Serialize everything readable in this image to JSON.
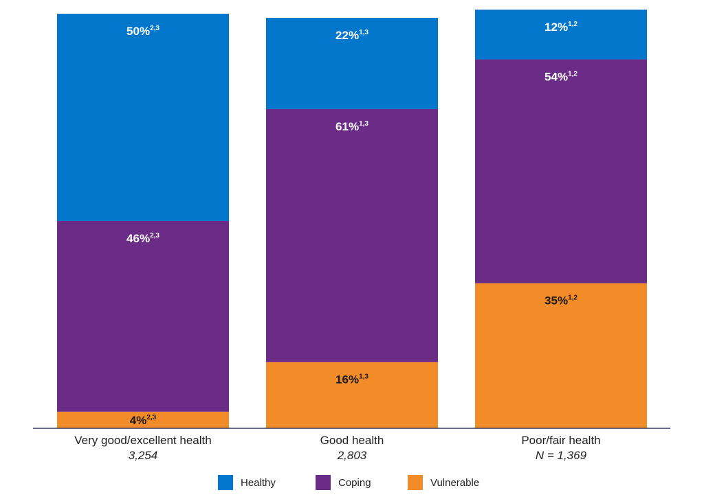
{
  "chart_data": {
    "type": "bar",
    "stacked": true,
    "title": "",
    "xlabel": "",
    "ylabel": "",
    "ylim": [
      0,
      100
    ],
    "categories": [
      "Very good/excellent health",
      "Good health",
      "Poor/fair health"
    ],
    "category_n": [
      "3,254",
      "2,803",
      "N = 1,369"
    ],
    "series": [
      {
        "name": "Vulnerable",
        "color": "#f28c28",
        "text_color": "#1a1a1a",
        "values": [
          4,
          16,
          35
        ],
        "labels": [
          "4%",
          "16%",
          "35%"
        ],
        "superscripts": [
          "2,3",
          "1,3",
          "1,2"
        ]
      },
      {
        "name": "Coping",
        "color": "#6b2c87",
        "text_color": "#ffffff",
        "values": [
          46,
          61,
          54
        ],
        "labels": [
          "46%",
          "61%",
          "54%"
        ],
        "superscripts": [
          "2,3",
          "1,3",
          "1,2"
        ]
      },
      {
        "name": "Healthy",
        "color": "#0277cc",
        "text_color": "#ffffff",
        "values": [
          50,
          22,
          12
        ],
        "labels": [
          "50%",
          "22%",
          "12%"
        ],
        "superscripts": [
          "2,3",
          "1,3",
          "1,2"
        ]
      }
    ],
    "legend": {
      "placement": "bottom",
      "order": [
        "Healthy",
        "Coping",
        "Vulnerable"
      ]
    },
    "axis_color": "#2a3a6e"
  }
}
